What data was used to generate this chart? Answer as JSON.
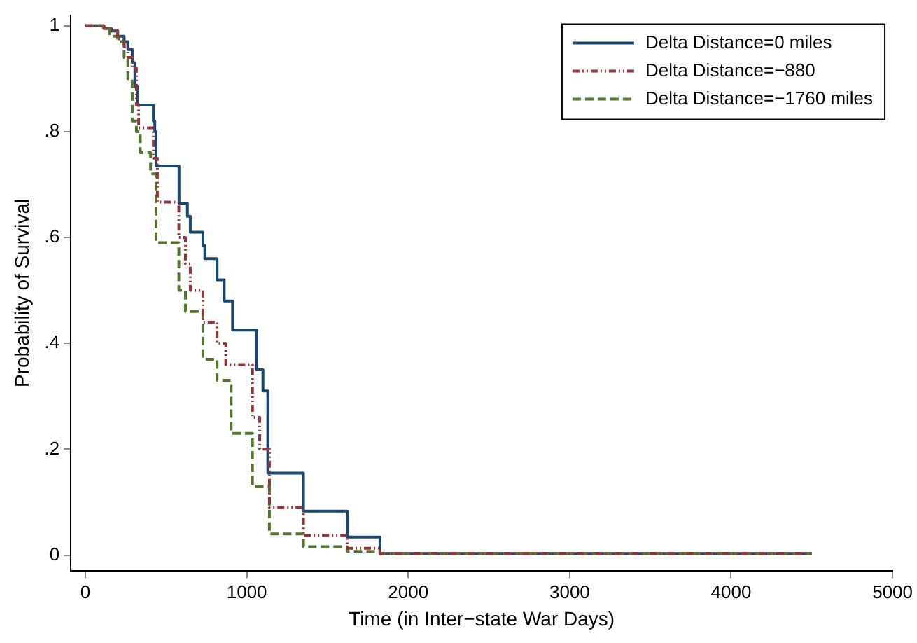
{
  "chart_data": {
    "type": "step",
    "xlabel": "Time (in Inter−state War Days)",
    "ylabel": "Probability of Survival",
    "xlim": [
      -90,
      5000
    ],
    "xticks": [
      0,
      1000,
      2000,
      3000,
      4000,
      5000
    ],
    "ylim": [
      -0.03,
      1.02
    ],
    "yticks": [
      {
        "value": 0,
        "label": "0"
      },
      {
        "value": 0.2,
        "label": ".2"
      },
      {
        "value": 0.4,
        "label": ".4"
      },
      {
        "value": 0.6,
        "label": ".6"
      },
      {
        "value": 0.8,
        "label": ".8"
      },
      {
        "value": 1,
        "label": "1"
      }
    ],
    "grid": false,
    "legend": "top right",
    "marker": "none",
    "series": [
      {
        "name": "Delta Distance=0 miles",
        "color": "#1a476f",
        "line_style": "solid",
        "x": [
          0,
          114,
          160,
          200,
          240,
          263,
          290,
          307,
          325,
          421,
          430,
          438,
          580,
          632,
          650,
          728,
          740,
          816,
          860,
          912,
          1061,
          1100,
          1130,
          1351,
          1623,
          1825,
          4500
        ],
        "values": [
          1,
          0.995,
          0.99,
          0.98,
          0.97,
          0.955,
          0.93,
          0.885,
          0.85,
          0.82,
          0.8,
          0.735,
          0.665,
          0.64,
          0.61,
          0.585,
          0.56,
          0.52,
          0.48,
          0.425,
          0.35,
          0.31,
          0.155,
          0.083,
          0.034,
          0.003,
          0.003
        ]
      },
      {
        "name": "Delta Distance=−880",
        "color": "#90353b",
        "line_style": "dashdot",
        "x": [
          0,
          114,
          160,
          200,
          240,
          263,
          290,
          316,
          330,
          421,
          446,
          579,
          620,
          650,
          728,
          816,
          870,
          1035,
          1080,
          1140,
          1351,
          1623,
          1825,
          4500
        ],
        "values": [
          1,
          0.995,
          0.99,
          0.975,
          0.96,
          0.94,
          0.92,
          0.85,
          0.807,
          0.75,
          0.667,
          0.6,
          0.55,
          0.5,
          0.44,
          0.4,
          0.36,
          0.26,
          0.2,
          0.09,
          0.037,
          0.013,
          0.003,
          0.003
        ]
      },
      {
        "name": "Delta Distance=−1760 miles",
        "color": "#55752f",
        "line_style": "dashed",
        "x": [
          0,
          114,
          150,
          200,
          240,
          263,
          290,
          316,
          340,
          404,
          438,
          579,
          620,
          728,
          816,
          903,
          1035,
          1140,
          1351,
          1623,
          1825,
          4500
        ],
        "values": [
          1,
          0.995,
          0.98,
          0.97,
          0.94,
          0.9,
          0.82,
          0.8,
          0.76,
          0.72,
          0.59,
          0.5,
          0.46,
          0.37,
          0.33,
          0.23,
          0.13,
          0.04,
          0.016,
          0.007,
          0.003,
          0.003
        ]
      }
    ]
  }
}
